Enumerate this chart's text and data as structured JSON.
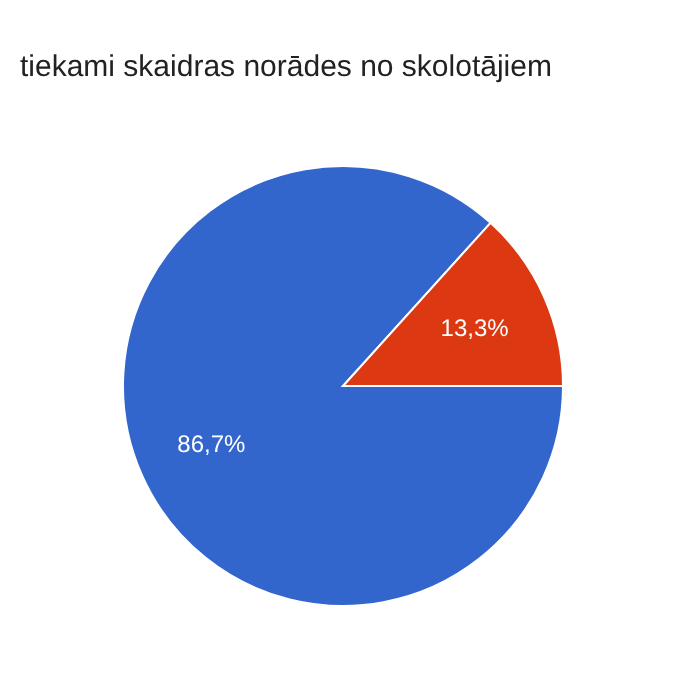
{
  "chart_data": {
    "type": "pie",
    "title": "tiekami skaidras norādes no skolotājiem",
    "categories": [
      null,
      null
    ],
    "values": [
      86.7,
      13.3
    ],
    "colors": [
      "#3366cc",
      "#dc3912"
    ],
    "value_labels": [
      "86,7%",
      "13,3%"
    ]
  }
}
